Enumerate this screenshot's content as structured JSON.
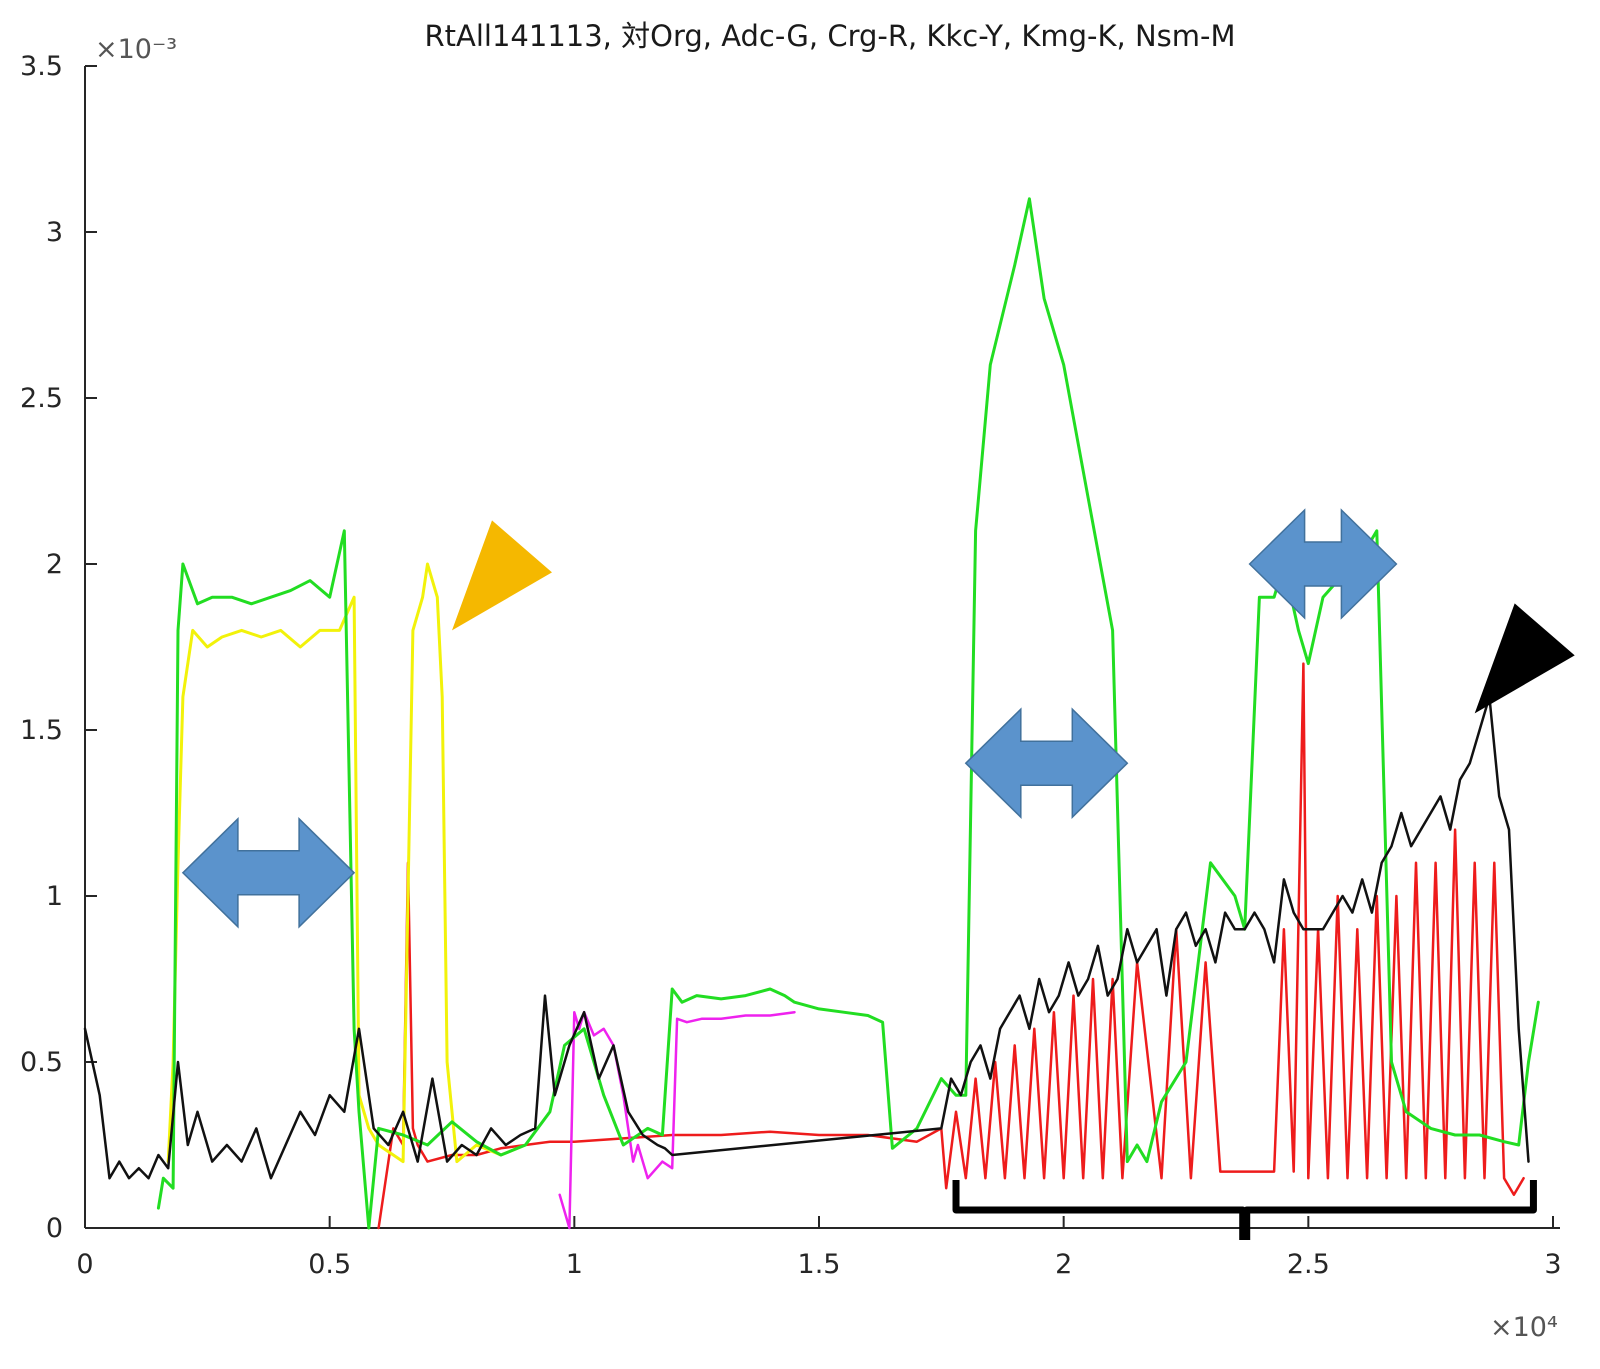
{
  "chart_data": {
    "type": "line",
    "title": "RtAll141113, 対Org, Adc-G, Crg-R, Kkc-Y, Kmg-K, Nsm-M",
    "xlabel": "",
    "ylabel": "",
    "xlim": [
      0,
      30000
    ],
    "ylim": [
      0,
      0.0035
    ],
    "x_exponent_label": "×10⁴",
    "y_exponent_label": "×10⁻³",
    "x_ticks": [
      0,
      5000,
      10000,
      15000,
      20000,
      25000,
      30000
    ],
    "x_tick_labels": [
      "0",
      "0.5",
      "1",
      "1.5",
      "2",
      "2.5",
      "3"
    ],
    "y_ticks": [
      0,
      0.0005,
      0.001,
      0.0015,
      0.002,
      0.0025,
      0.003,
      0.0035
    ],
    "y_tick_labels": [
      "0",
      "0.5",
      "1",
      "1.5",
      "2",
      "2.5",
      "3",
      "3.5"
    ],
    "grid": false,
    "series": [
      {
        "key": "Adc",
        "color": "#22dd22",
        "x": [
          1500,
          1600,
          1800,
          1900,
          2000,
          2300,
          2600,
          3000,
          3400,
          3800,
          4200,
          4600,
          5000,
          5300,
          5500,
          5600,
          5800,
          6000,
          6500,
          7000,
          7500,
          8000,
          8500,
          9000,
          9500,
          9800,
          10200,
          10600,
          11000,
          11500,
          11800,
          12000,
          12200,
          12500,
          13000,
          13500,
          14000,
          14300,
          14500,
          15000,
          15500,
          16000,
          16300,
          16500,
          17000,
          17500,
          17800,
          18000,
          18200,
          18500,
          19000,
          19300,
          19600,
          20000,
          20500,
          21000,
          21300,
          21500,
          21700,
          22000,
          22500,
          23000,
          23500,
          23700,
          24000,
          24300,
          24500,
          24800,
          25000,
          25300,
          25600,
          26000,
          26400,
          26700,
          27000,
          27500,
          28000,
          28500,
          29000,
          29300,
          29500,
          29700
        ],
        "values": [
          6e-05,
          0.00015,
          0.00012,
          0.0018,
          0.002,
          0.00188,
          0.0019,
          0.0019,
          0.00188,
          0.0019,
          0.00192,
          0.00195,
          0.0019,
          0.0021,
          0.0006,
          0.00035,
          0.0,
          0.0003,
          0.00028,
          0.00025,
          0.00032,
          0.00026,
          0.00022,
          0.00025,
          0.00035,
          0.00055,
          0.0006,
          0.0004,
          0.00025,
          0.0003,
          0.00028,
          0.00072,
          0.00068,
          0.0007,
          0.00069,
          0.0007,
          0.00072,
          0.0007,
          0.00068,
          0.00066,
          0.00065,
          0.00064,
          0.00062,
          0.00024,
          0.0003,
          0.00045,
          0.0004,
          0.0004,
          0.0021,
          0.0026,
          0.0029,
          0.0031,
          0.0028,
          0.0026,
          0.0022,
          0.0018,
          0.0002,
          0.00025,
          0.0002,
          0.00038,
          0.0005,
          0.0011,
          0.001,
          0.0009,
          0.0019,
          0.0019,
          0.002,
          0.0018,
          0.0017,
          0.0019,
          0.00195,
          0.002,
          0.0021,
          0.0005,
          0.00035,
          0.0003,
          0.00028,
          0.00028,
          0.00026,
          0.00025,
          0.0005,
          0.00068
        ]
      },
      {
        "key": "Crg",
        "color": "#ee1c1c",
        "x": [
          6000,
          6300,
          6500,
          6600,
          6700,
          6800,
          7000,
          7500,
          8000,
          8500,
          9000,
          9500,
          10000,
          11000,
          12000,
          13000,
          14000,
          15000,
          16000,
          16500,
          17000,
          17500,
          17600,
          17800,
          18000,
          18200,
          18400,
          18600,
          18800,
          19000,
          19200,
          19400,
          19600,
          19800,
          20000,
          20200,
          20400,
          20600,
          20800,
          21000,
          21200,
          21500,
          22000,
          22300,
          22600,
          22900,
          23200,
          23500,
          23800,
          24000,
          24300,
          24500,
          24700,
          24900,
          25000,
          25200,
          25400,
          25600,
          25800,
          26000,
          26200,
          26400,
          26600,
          26800,
          27000,
          27200,
          27400,
          27600,
          27800,
          28000,
          28200,
          28400,
          28600,
          28800,
          29000,
          29200,
          29400
        ],
        "values": [
          0.0,
          0.0003,
          0.00025,
          0.0011,
          0.0003,
          0.00025,
          0.0002,
          0.00022,
          0.00022,
          0.00024,
          0.00025,
          0.00026,
          0.00026,
          0.00027,
          0.00028,
          0.00028,
          0.00029,
          0.00028,
          0.00028,
          0.00027,
          0.00026,
          0.0003,
          0.00012,
          0.00035,
          0.00015,
          0.00045,
          0.00015,
          0.0005,
          0.00015,
          0.00055,
          0.00015,
          0.0006,
          0.00015,
          0.00065,
          0.00015,
          0.0007,
          0.00015,
          0.00075,
          0.00015,
          0.00075,
          0.00015,
          0.0008,
          0.00015,
          0.0009,
          0.00015,
          0.0008,
          0.00017,
          0.00017,
          0.00017,
          0.00017,
          0.00017,
          0.0009,
          0.00017,
          0.0017,
          0.00015,
          0.0009,
          0.00015,
          0.001,
          0.00015,
          0.0009,
          0.00015,
          0.001,
          0.00015,
          0.001,
          0.00015,
          0.0011,
          0.00015,
          0.0011,
          0.00015,
          0.0012,
          0.00015,
          0.0011,
          0.00015,
          0.0011,
          0.00015,
          0.0001,
          0.00015
        ]
      },
      {
        "key": "Kkc",
        "color": "#f2f20a",
        "x": [
          1700,
          1800,
          1900,
          2000,
          2200,
          2500,
          2800,
          3200,
          3600,
          4000,
          4400,
          4800,
          5200,
          5500,
          5600,
          5800,
          6000,
          6500,
          6700,
          6900,
          7000,
          7200,
          7300,
          7400,
          7600,
          8000,
          8500,
          9000
        ],
        "values": [
          0.0002,
          0.0005,
          0.0011,
          0.0016,
          0.0018,
          0.00175,
          0.00178,
          0.0018,
          0.00178,
          0.0018,
          0.00175,
          0.0018,
          0.0018,
          0.0019,
          0.0004,
          0.0003,
          0.00025,
          0.0002,
          0.0018,
          0.0019,
          0.002,
          0.0019,
          0.0016,
          0.0005,
          0.0002,
          0.00025,
          0.00022,
          0.00025
        ]
      },
      {
        "key": "Kmg",
        "color": "#111111",
        "x": [
          0,
          300,
          500,
          700,
          900,
          1100,
          1300,
          1500,
          1700,
          1900,
          2100,
          2300,
          2600,
          2900,
          3200,
          3500,
          3800,
          4100,
          4400,
          4700,
          5000,
          5300,
          5600,
          5900,
          6200,
          6500,
          6800,
          7100,
          7400,
          7700,
          8000,
          8300,
          8600,
          8900,
          9200,
          9400,
          9600,
          9900,
          10200,
          10500,
          10800,
          11100,
          11400,
          11700,
          11850,
          12000,
          17500,
          17700,
          17900,
          18100,
          18300,
          18500,
          18700,
          18900,
          19100,
          19300,
          19500,
          19700,
          19900,
          20100,
          20300,
          20500,
          20700,
          20900,
          21100,
          21300,
          21500,
          21700,
          21900,
          22100,
          22300,
          22500,
          22700,
          22900,
          23100,
          23300,
          23500,
          23700,
          23900,
          24100,
          24300,
          24500,
          24700,
          24900,
          25100,
          25300,
          25500,
          25700,
          25900,
          26100,
          26300,
          26500,
          26700,
          26900,
          27100,
          27300,
          27500,
          27700,
          27900,
          28100,
          28300,
          28500,
          28700,
          28900,
          29100,
          29300,
          29500
        ],
        "values": [
          0.0006,
          0.0004,
          0.00015,
          0.0002,
          0.00015,
          0.00018,
          0.00015,
          0.00022,
          0.00018,
          0.0005,
          0.00025,
          0.00035,
          0.0002,
          0.00025,
          0.0002,
          0.0003,
          0.00015,
          0.00025,
          0.00035,
          0.00028,
          0.0004,
          0.00035,
          0.0006,
          0.0003,
          0.00025,
          0.00035,
          0.0002,
          0.00045,
          0.0002,
          0.00025,
          0.00022,
          0.0003,
          0.00025,
          0.00028,
          0.0003,
          0.0007,
          0.0004,
          0.00055,
          0.00065,
          0.00045,
          0.00055,
          0.00035,
          0.00028,
          0.00025,
          0.00024,
          0.00022,
          0.0003,
          0.00045,
          0.0004,
          0.0005,
          0.00055,
          0.00045,
          0.0006,
          0.00065,
          0.0007,
          0.0006,
          0.00075,
          0.00065,
          0.0007,
          0.0008,
          0.0007,
          0.00075,
          0.00085,
          0.0007,
          0.00075,
          0.0009,
          0.0008,
          0.00085,
          0.0009,
          0.0007,
          0.0009,
          0.00095,
          0.00085,
          0.0009,
          0.0008,
          0.00095,
          0.0009,
          0.0009,
          0.00095,
          0.0009,
          0.0008,
          0.00105,
          0.00095,
          0.0009,
          0.0009,
          0.0009,
          0.00095,
          0.001,
          0.00095,
          0.00105,
          0.00095,
          0.0011,
          0.00115,
          0.00125,
          0.00115,
          0.0012,
          0.00125,
          0.0013,
          0.0012,
          0.00135,
          0.0014,
          0.0015,
          0.0016,
          0.0013,
          0.0012,
          0.0006,
          0.0002
        ]
      },
      {
        "key": "Nsm",
        "color": "#ee22ee",
        "x": [
          9700,
          9900,
          10000,
          10100,
          10200,
          10400,
          10600,
          10800,
          11000,
          11200,
          11300,
          11500,
          11800,
          12000,
          12100,
          12300,
          12600,
          13000,
          13500,
          14000,
          14500
        ],
        "values": [
          0.0001,
          0.0,
          0.00065,
          0.0006,
          0.00065,
          0.00058,
          0.0006,
          0.00055,
          0.0004,
          0.0002,
          0.00025,
          0.00015,
          0.0002,
          0.00018,
          0.00063,
          0.00062,
          0.00063,
          0.00063,
          0.00064,
          0.00064,
          0.00065
        ]
      }
    ],
    "annotations": [
      {
        "shape": "double-arrow",
        "color": "#5b93cc",
        "x_from": 2000,
        "x_to": 5500,
        "y": 0.00107
      },
      {
        "shape": "double-arrow",
        "color": "#5b93cc",
        "x_from": 18000,
        "x_to": 21300,
        "y": 0.0014
      },
      {
        "shape": "double-arrow",
        "color": "#5b93cc",
        "x_from": 23800,
        "x_to": 26800,
        "y": 0.002
      },
      {
        "shape": "triangle-pointer",
        "color": "#f5b800",
        "x": 7500,
        "y": 0.0018
      },
      {
        "shape": "triangle-pointer",
        "color": "#000000",
        "x": 28400,
        "y": 0.00155
      },
      {
        "shape": "curly-brace",
        "color": "#000000",
        "x_from": 17800,
        "x_to": 29600,
        "y": 0.0
      }
    ]
  }
}
